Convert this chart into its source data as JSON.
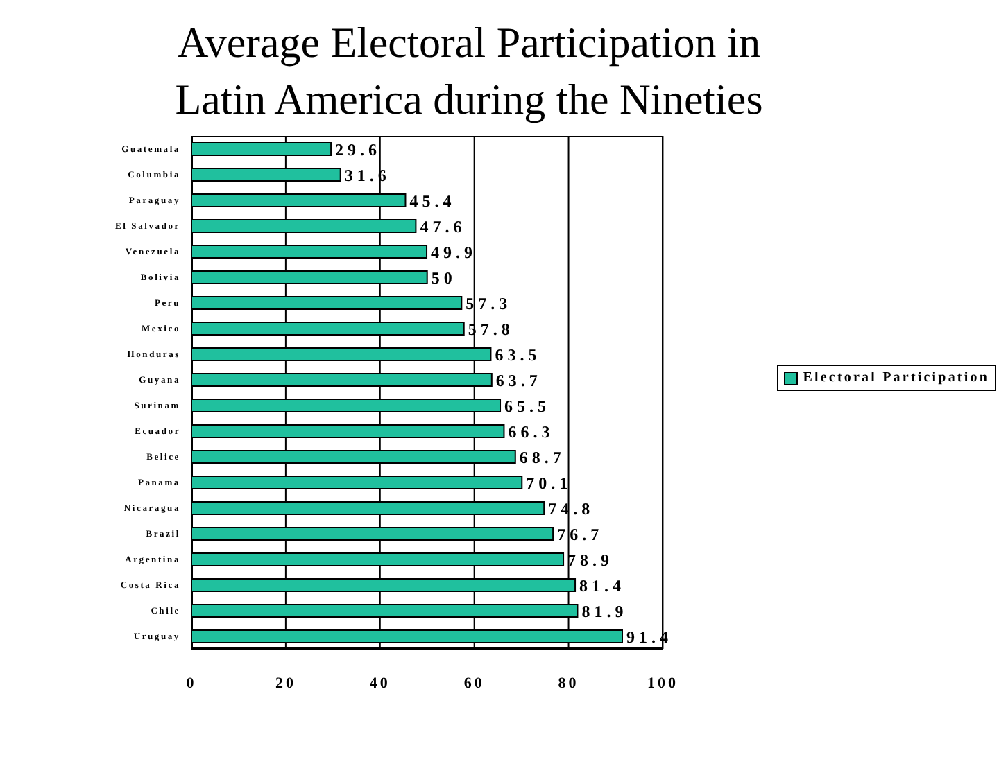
{
  "chart_data": {
    "type": "bar",
    "orientation": "horizontal",
    "title": "Average Electoral Participation in Latin America during the Nineties",
    "categories": [
      "Guatemala",
      "Columbia",
      "Paraguay",
      "El Salvador",
      "Venezuela",
      "Bolivia",
      "Peru",
      "Mexico",
      "Honduras",
      "Guyana",
      "Surinam",
      "Ecuador",
      "Belice",
      "Panama",
      "Nicaragua",
      "Brazil",
      "Argentina",
      "Costa Rica",
      "Chile",
      "Uruguay"
    ],
    "series": [
      {
        "name": "Electoral Participation",
        "color": "#20c09e",
        "values": [
          29.6,
          31.6,
          45.4,
          47.6,
          49.9,
          50,
          57.3,
          57.8,
          63.5,
          63.7,
          65.5,
          66.3,
          68.7,
          70.1,
          74.8,
          76.7,
          78.9,
          81.4,
          81.9,
          91.4
        ]
      }
    ],
    "xlim": [
      0,
      100
    ],
    "xticks": [
      0,
      20,
      40,
      60,
      80,
      100
    ],
    "grid": "x",
    "legend": "right",
    "data_labels": true
  }
}
